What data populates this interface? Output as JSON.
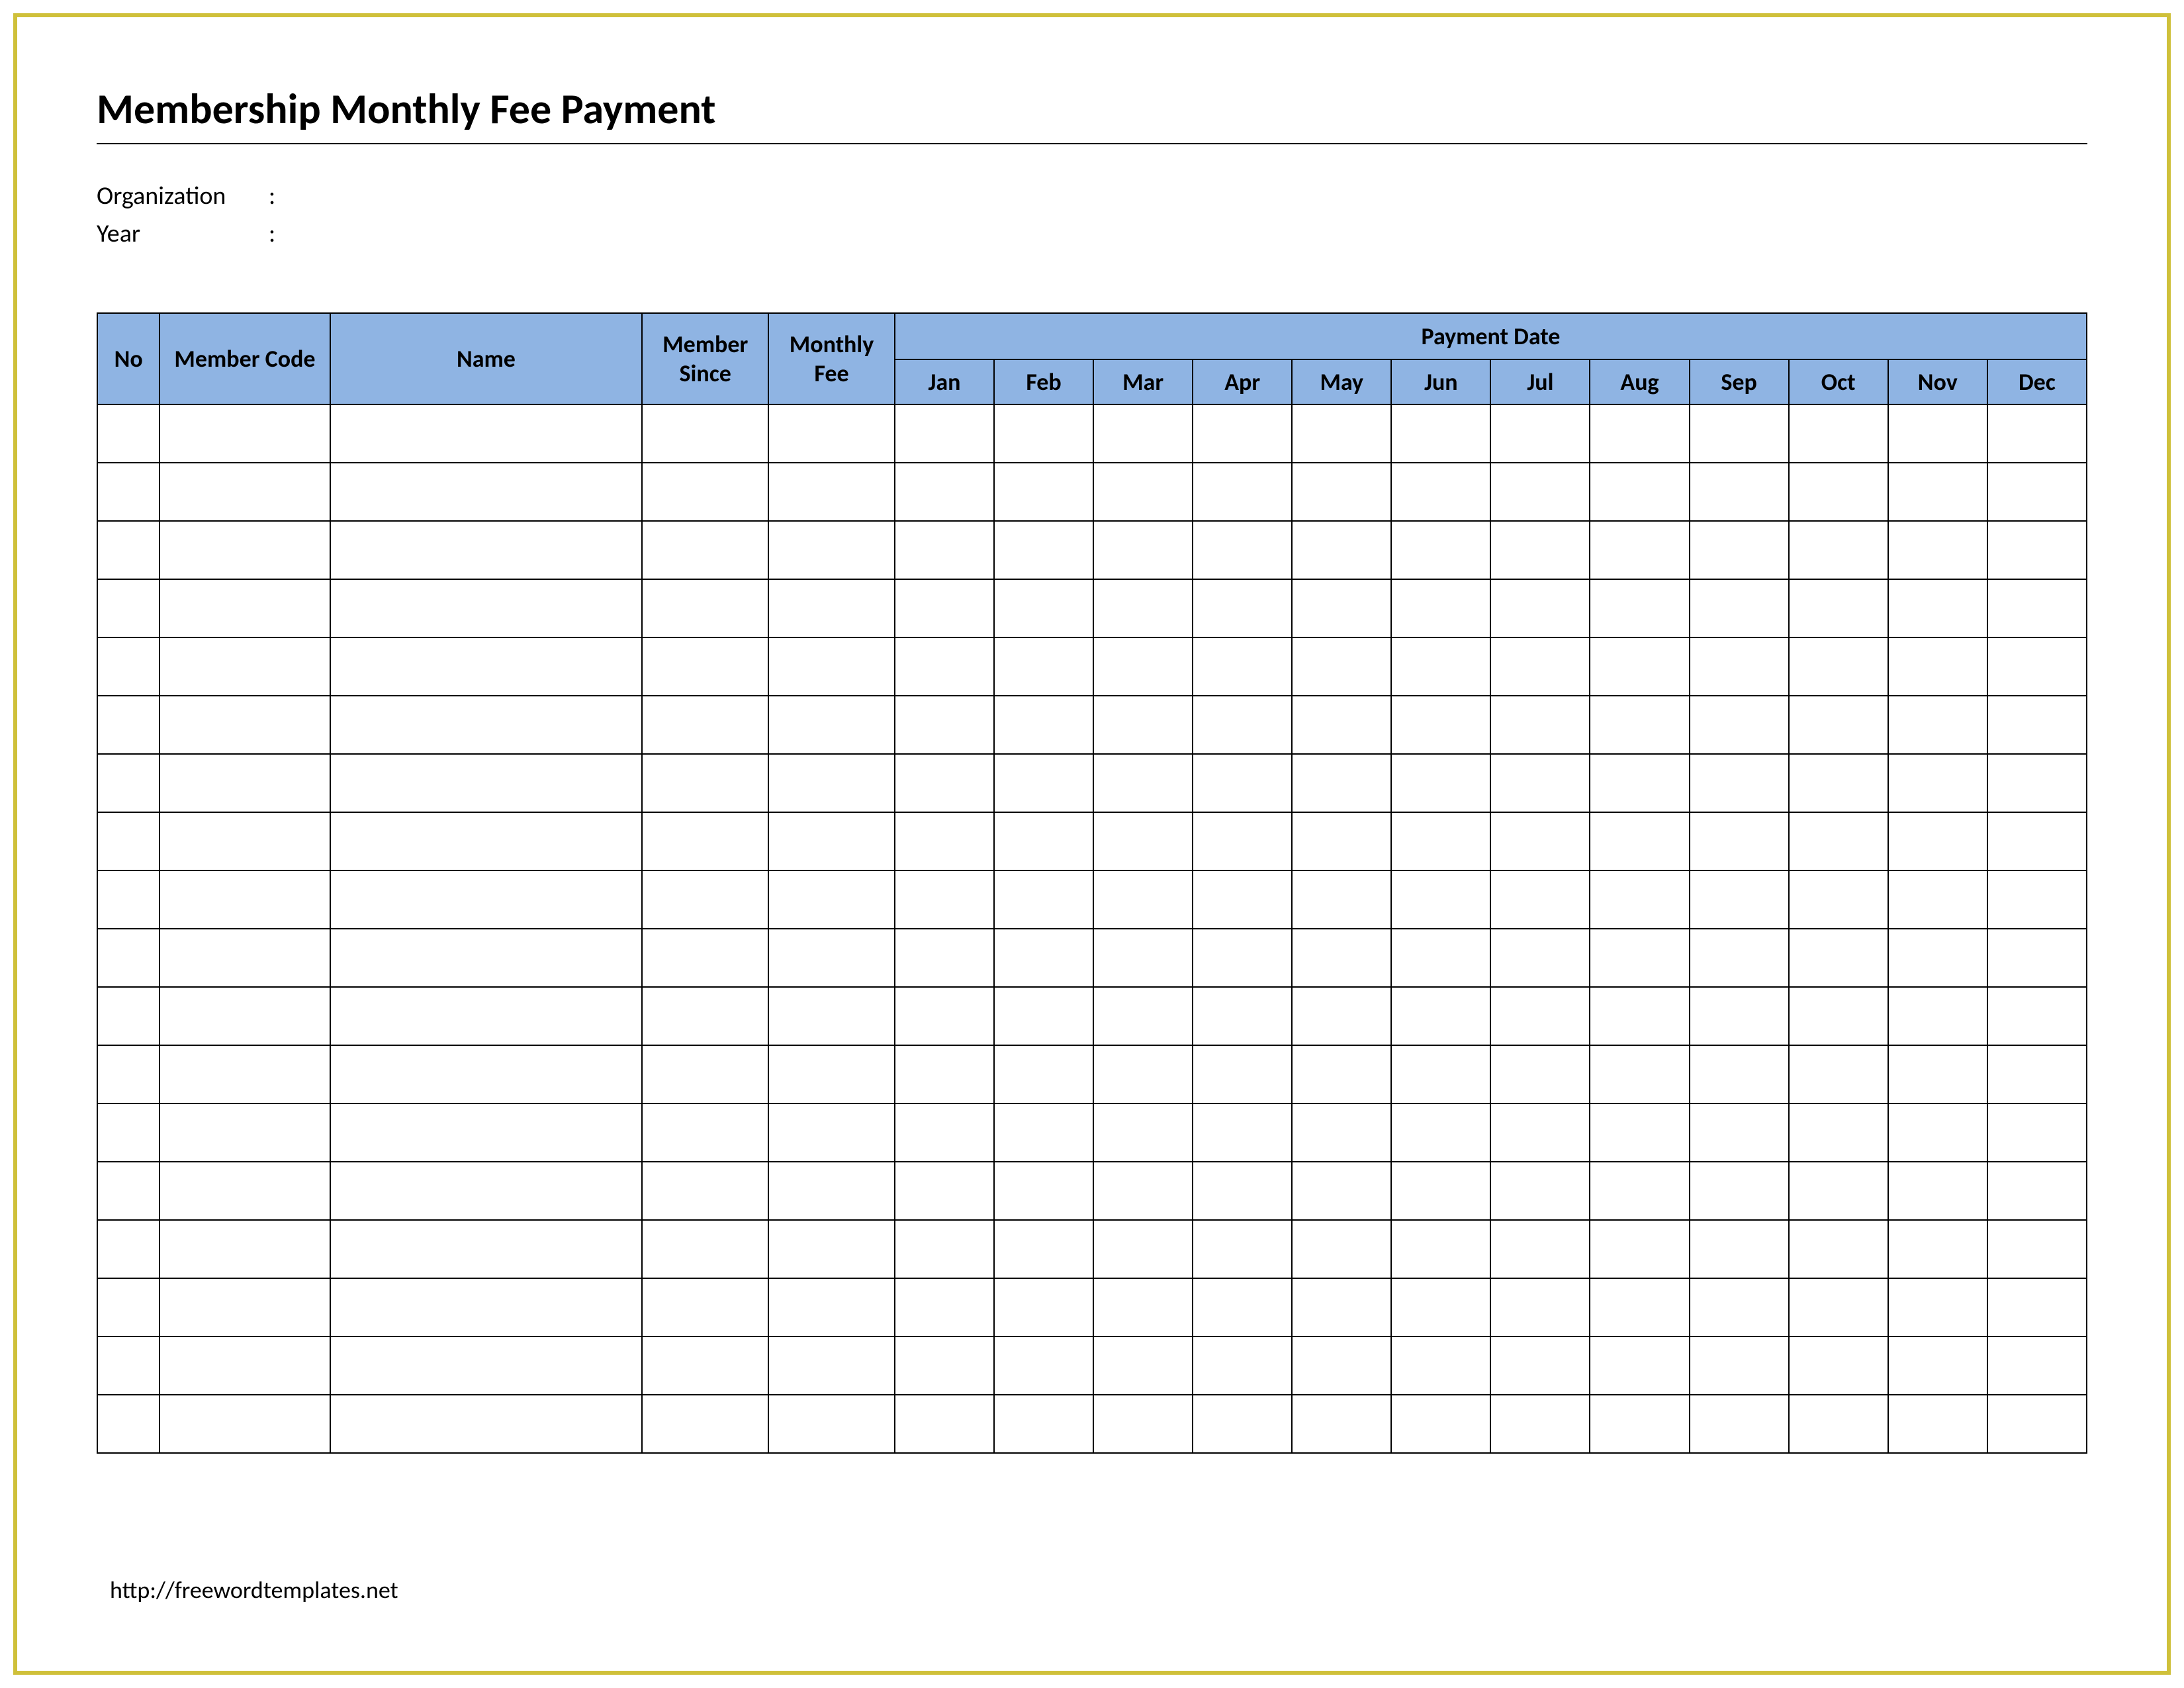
{
  "title": "Membership Monthly Fee Payment",
  "meta": {
    "organization_label": "Organization",
    "year_label": "Year",
    "colon": ":"
  },
  "table": {
    "headers": {
      "no": "No",
      "member_code": "Member Code",
      "name": "Name",
      "member_since": "Member Since",
      "monthly_fee": "Monthly Fee",
      "payment_date": "Payment Date"
    },
    "months": [
      "Jan",
      "Feb",
      "Mar",
      "Apr",
      "May",
      "Jun",
      "Jul",
      "Aug",
      "Sep",
      "Oct",
      "Nov",
      "Dec"
    ],
    "row_count": 18,
    "header_bg_color": "#8fb4e3",
    "border_color": "#000000",
    "column_widths": {
      "no": 88,
      "member_code": 240,
      "name": 440,
      "member_since": 178,
      "monthly_fee": 178,
      "month": 140
    }
  },
  "footer": {
    "url": "http://freewordtemplates.net"
  },
  "frame_color": "#cfc03a",
  "background_color": "#ffffff",
  "title_fontsize": 64,
  "meta_fontsize": 38,
  "header_fontsize": 36
}
